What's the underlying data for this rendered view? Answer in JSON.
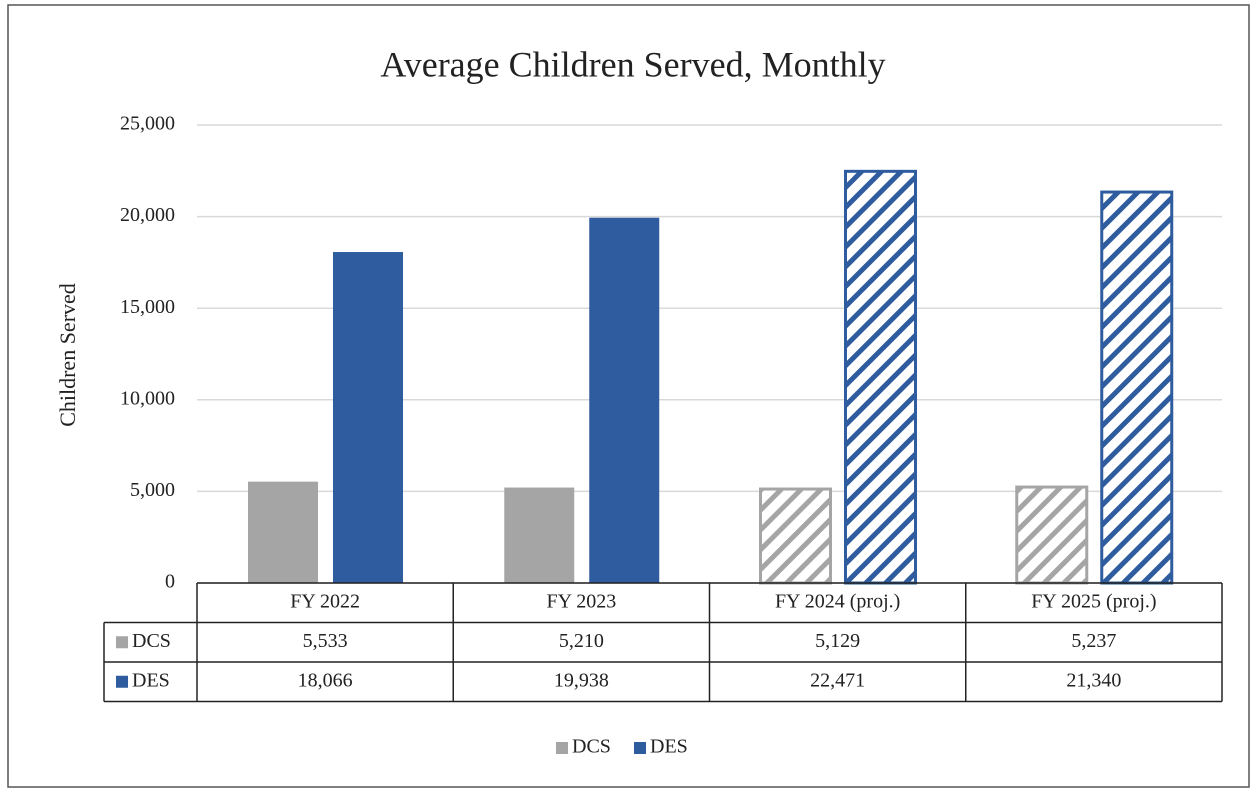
{
  "chart_data": {
    "type": "bar",
    "title": "Average Children Served, Monthly",
    "y_label": "Children Served",
    "categories": [
      "FY 2022",
      "FY 2023",
      "FY 2024 (proj.)",
      "FY 2025 (proj.)"
    ],
    "series": [
      {
        "name": "DCS",
        "color": "#a5a5a5",
        "values": [
          5533,
          5210,
          5129,
          5237
        ],
        "value_labels": [
          "5,533",
          "5,210",
          "5,129",
          "5,237"
        ]
      },
      {
        "name": "DES",
        "color": "#2e5c9e",
        "values": [
          18066,
          19938,
          22471,
          21340
        ],
        "value_labels": [
          "18,066",
          "19,938",
          "22,471",
          "21,340"
        ]
      }
    ],
    "hatched": [
      false,
      false,
      true,
      true
    ],
    "ylim": [
      0,
      25000
    ],
    "yticks": [
      0,
      {
        "value": 5000,
        "label": "5,000"
      },
      {
        "value": 10000,
        "label": "10,000"
      },
      {
        "value": 15000,
        "label": "15,000"
      },
      {
        "value": 20000,
        "label": "20,000"
      },
      {
        "value": 25000,
        "label": "25,000"
      }
    ],
    "grid": true,
    "legend": "bottom"
  }
}
